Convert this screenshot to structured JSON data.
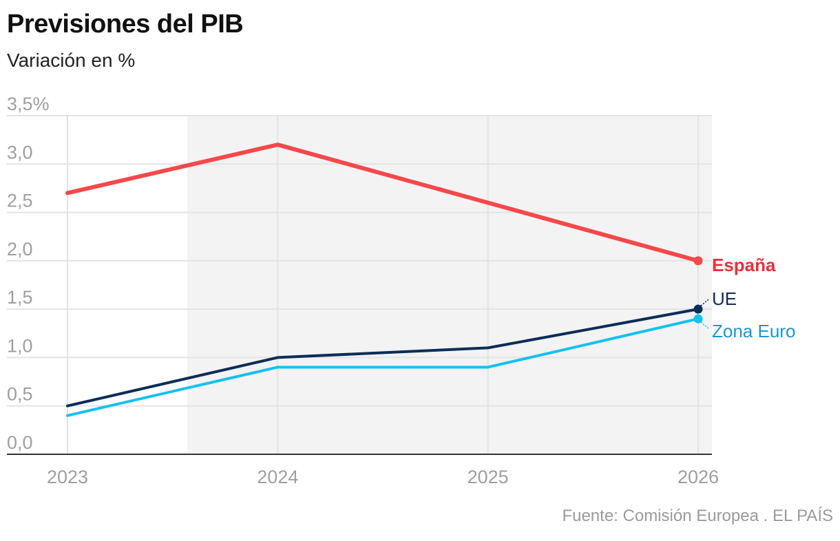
{
  "title": "Previsiones del PIB",
  "subtitle": "Variación en %",
  "source": "Fuente: Comisión Europea . EL PAÍS",
  "chart_data": {
    "type": "line",
    "title": "Previsiones del PIB",
    "subtitle": "Variación en %",
    "x": [
      "2023",
      "2024",
      "2025",
      "2026"
    ],
    "ylim": [
      0,
      3.5
    ],
    "y_ticks": [
      0,
      0.5,
      1.0,
      1.5,
      2.0,
      2.5,
      3.0,
      3.5
    ],
    "y_tick_labels": [
      "0,0",
      "0,5",
      "1,0",
      "1,5",
      "2,0",
      "2,5",
      "3,0",
      "3,5%"
    ],
    "grid": true,
    "shaded_region": {
      "from": "2023 (parcial)",
      "to": "2026",
      "meaning": "previsiones"
    },
    "series": [
      {
        "name": "España",
        "values": [
          2.7,
          3.2,
          2.6,
          2.0
        ],
        "color": "#f4484b",
        "label_color": "#e8303a"
      },
      {
        "name": "UE",
        "values": [
          0.5,
          1.0,
          1.1,
          1.5
        ],
        "color": "#0c2d57",
        "label_color": "#0c2d57"
      },
      {
        "name": "Zona Euro",
        "values": [
          0.4,
          0.9,
          0.9,
          1.4
        ],
        "color": "#12c2f0",
        "label_color": "#1a95d3"
      }
    ]
  }
}
